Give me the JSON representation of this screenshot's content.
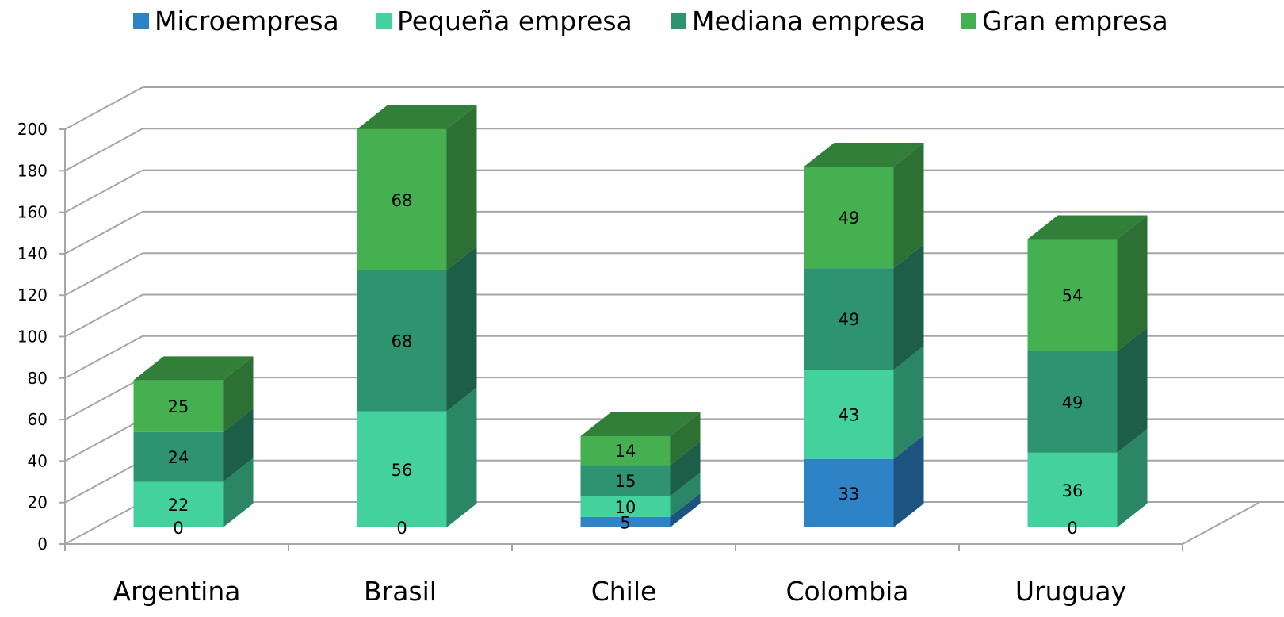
{
  "chart_data": {
    "type": "bar",
    "stacked": true,
    "three_d": true,
    "categories": [
      "Argentina",
      "Brasil",
      "Chile",
      "Colombia",
      "Uruguay"
    ],
    "series": [
      {
        "name": "Microempresa",
        "values": [
          0,
          0,
          5,
          33,
          0
        ],
        "color": "#2E83C6"
      },
      {
        "name": "Pequeña empresa",
        "values": [
          22,
          56,
          10,
          43,
          36
        ],
        "color": "#43D19E"
      },
      {
        "name": "Mediana empresa",
        "values": [
          24,
          68,
          15,
          49,
          49
        ],
        "color": "#2D9370"
      },
      {
        "name": "Gran empresa",
        "values": [
          25,
          68,
          14,
          49,
          54
        ],
        "color": "#45B04F"
      }
    ],
    "ylim": [
      0,
      200
    ],
    "yticks": [
      0,
      20,
      40,
      60,
      80,
      100,
      120,
      140,
      160,
      180,
      200
    ],
    "grid": true,
    "legend_position": "top",
    "title": "",
    "xlabel": "",
    "ylabel": ""
  }
}
